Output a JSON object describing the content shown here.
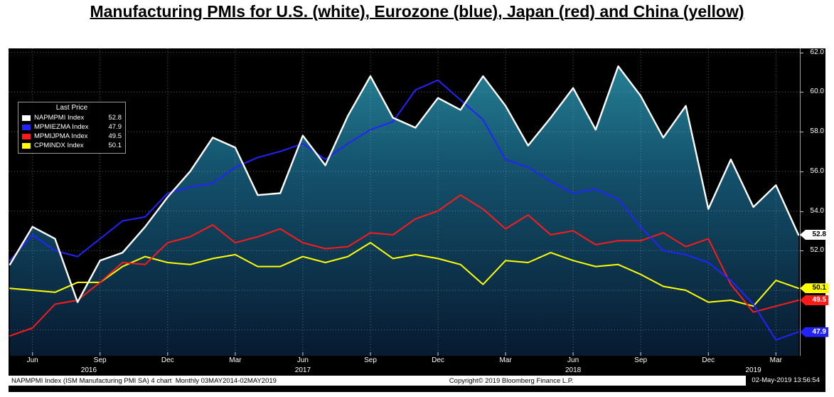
{
  "page_title": "Manufacturing PMIs for U.S. (white), Eurozone (blue), Japan (red) and China (yellow)",
  "legend": {
    "title": "Last Price",
    "items": [
      {
        "id": "us",
        "label": "NAPMPMI Index",
        "value": "52.8",
        "color": "#ffffff"
      },
      {
        "id": "eurozone",
        "label": "MPMIEZMA Index",
        "value": "47.9",
        "color": "#2323ff"
      },
      {
        "id": "japan",
        "label": "MPMIJPMA Index",
        "value": "49.5",
        "color": "#ff1a1a"
      },
      {
        "id": "china",
        "label": "CPMINDX Index",
        "value": "50.1",
        "color": "#ffff00"
      }
    ]
  },
  "footer": {
    "left": "NAPMPMI Index (ISM Manufacturing PMI SA) 4 chart  Monthly 03MAY2014-02MAY2019",
    "center": "Copyright© 2019 Bloomberg Finance L.P.",
    "timestamp": "02-May-2019 13:56:54"
  },
  "chart_data": {
    "type": "line",
    "title": "Manufacturing PMIs for U.S. (white), Eurozone (blue), Japan (red) and China (yellow)",
    "background": "#000000",
    "grid": true,
    "legend_position": "top-left",
    "x_monthly": [
      "2016-05",
      "2016-06",
      "2016-07",
      "2016-08",
      "2016-09",
      "2016-10",
      "2016-11",
      "2016-12",
      "2017-01",
      "2017-02",
      "2017-03",
      "2017-04",
      "2017-05",
      "2017-06",
      "2017-07",
      "2017-08",
      "2017-09",
      "2017-10",
      "2017-11",
      "2017-12",
      "2018-01",
      "2018-02",
      "2018-03",
      "2018-04",
      "2018-05",
      "2018-06",
      "2018-07",
      "2018-08",
      "2018-09",
      "2018-10",
      "2018-11",
      "2018-12",
      "2019-01",
      "2019-02",
      "2019-03",
      "2019-04"
    ],
    "series": [
      {
        "id": "us",
        "name": "NAPMPMI Index",
        "region": "U.S.",
        "color": "#ffffff",
        "width": 2.4,
        "last_price": 52.8,
        "area_fill": true,
        "values": [
          51.3,
          53.2,
          52.6,
          49.4,
          51.5,
          51.9,
          53.2,
          54.7,
          56.0,
          57.7,
          57.2,
          54.8,
          54.9,
          57.8,
          56.3,
          58.8,
          60.8,
          58.7,
          58.2,
          59.7,
          59.1,
          60.8,
          59.3,
          57.3,
          58.7,
          60.2,
          58.1,
          61.3,
          59.8,
          57.7,
          59.3,
          54.1,
          56.6,
          54.2,
          55.3,
          52.8
        ]
      },
      {
        "id": "eurozone",
        "name": "MPMIEZMA Index",
        "region": "Eurozone",
        "color": "#2323ff",
        "width": 2,
        "last_price": 47.9,
        "area_fill": false,
        "values": [
          51.5,
          52.8,
          52.0,
          51.7,
          52.6,
          53.5,
          53.7,
          54.9,
          55.2,
          55.4,
          56.2,
          56.7,
          57.0,
          57.4,
          56.6,
          57.4,
          58.1,
          58.5,
          60.1,
          60.6,
          59.6,
          58.6,
          56.6,
          56.2,
          55.5,
          54.9,
          55.1,
          54.6,
          53.2,
          52.0,
          51.8,
          51.4,
          50.5,
          49.3,
          47.5,
          47.9
        ]
      },
      {
        "id": "japan",
        "name": "MPMIJPMA Index",
        "region": "Japan",
        "color": "#ff1a1a",
        "width": 2,
        "last_price": 49.5,
        "area_fill": false,
        "values": [
          47.7,
          48.1,
          49.3,
          49.5,
          50.4,
          51.4,
          51.3,
          52.4,
          52.7,
          53.3,
          52.4,
          52.7,
          53.1,
          52.4,
          52.1,
          52.2,
          52.9,
          52.8,
          53.6,
          54.0,
          54.8,
          54.1,
          53.1,
          53.8,
          52.8,
          53.0,
          52.3,
          52.5,
          52.5,
          52.9,
          52.2,
          52.6,
          50.3,
          48.9,
          49.2,
          49.5
        ]
      },
      {
        "id": "china",
        "name": "CPMINDX Index",
        "region": "China",
        "color": "#ffff00",
        "width": 2,
        "last_price": 50.1,
        "area_fill": false,
        "values": [
          50.1,
          50.0,
          49.9,
          50.4,
          50.4,
          51.2,
          51.7,
          51.4,
          51.3,
          51.6,
          51.8,
          51.2,
          51.2,
          51.7,
          51.4,
          51.7,
          52.4,
          51.6,
          51.8,
          51.6,
          51.3,
          50.3,
          51.5,
          51.4,
          51.9,
          51.5,
          51.2,
          51.3,
          50.8,
          50.2,
          50.0,
          49.4,
          49.5,
          49.2,
          50.5,
          50.1
        ]
      }
    ],
    "y_axis": {
      "min": 46.7,
      "max": 62.2,
      "grid_step": 2,
      "tick_labels": [
        {
          "label": "62.0",
          "value": 62
        },
        {
          "label": "60.0",
          "value": 60
        },
        {
          "label": "58.0",
          "value": 58
        },
        {
          "label": "56.0",
          "value": 56
        },
        {
          "label": "54.0",
          "value": 54
        },
        {
          "label": "52.0",
          "value": 52
        }
      ]
    },
    "x_ticks": [
      {
        "label": "Jun",
        "month_index": 1
      },
      {
        "label": "Sep",
        "month_index": 4
      },
      {
        "label": "Dec",
        "month_index": 7
      },
      {
        "label": "Mar",
        "month_index": 10
      },
      {
        "label": "Jun",
        "month_index": 13
      },
      {
        "label": "Sep",
        "month_index": 16
      },
      {
        "label": "Dec",
        "month_index": 19
      },
      {
        "label": "Mar",
        "month_index": 22
      },
      {
        "label": "Jun",
        "month_index": 25
      },
      {
        "label": "Sep",
        "month_index": 28
      },
      {
        "label": "Dec",
        "month_index": 31
      },
      {
        "label": "Mar",
        "month_index": 34
      }
    ],
    "year_labels": [
      {
        "label": "2016",
        "month_index": 3.5
      },
      {
        "label": "2017",
        "month_index": 13
      },
      {
        "label": "2018",
        "month_index": 25
      },
      {
        "label": "2019",
        "month_index": 33
      }
    ],
    "price_badges": [
      {
        "id": "us",
        "label": "52.8",
        "value": 52.8,
        "bg": "#ffffff",
        "fg": "#000000"
      },
      {
        "id": "china",
        "label": "50.1",
        "value": 50.1,
        "bg": "#ffff00",
        "fg": "#000000"
      },
      {
        "id": "japan",
        "label": "49.5",
        "value": 49.5,
        "bg": "#ff1a1a",
        "fg": "#ffffff"
      },
      {
        "id": "eurozone",
        "label": "47.9",
        "value": 47.9,
        "bg": "#2323ff",
        "fg": "#ffffff"
      }
    ],
    "area_fill": {
      "stops": [
        {
          "offset": 0,
          "color": "#27879a"
        },
        {
          "offset": 0.38,
          "color": "#14536e"
        },
        {
          "offset": 1,
          "color": "#071a30"
        }
      ]
    }
  }
}
